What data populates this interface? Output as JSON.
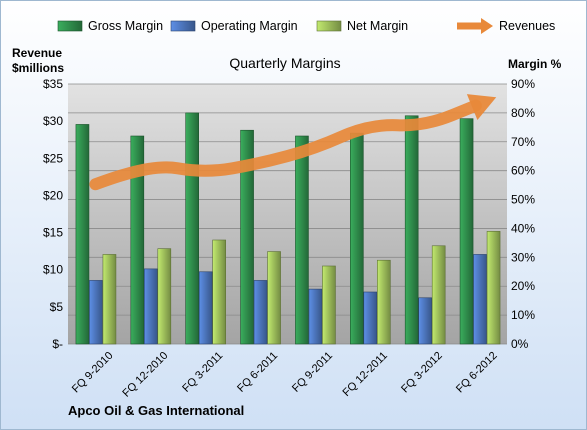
{
  "chart_data": {
    "type": "bar",
    "title": "Quarterly Margins",
    "company": "Apco Oil & Gas International",
    "categories": [
      "FQ 9-2010",
      "FQ 12-2010",
      "FQ 3-2011",
      "FQ 6-2011",
      "FQ 9-2011",
      "FQ 12-2011",
      "FQ 3-2012",
      "FQ 6-2012"
    ],
    "series": [
      {
        "name": "Gross Margin",
        "axis": "right",
        "color": "#2e8b4a",
        "values": [
          76,
          72,
          80,
          74,
          72,
          73,
          79,
          78
        ]
      },
      {
        "name": "Operating Margin",
        "axis": "right",
        "color": "#4a72b8",
        "values": [
          22,
          26,
          25,
          22,
          19,
          18,
          16,
          31
        ]
      },
      {
        "name": "Net Margin",
        "axis": "right",
        "color": "#9bbb59",
        "values": [
          31,
          33,
          36,
          32,
          27,
          29,
          34,
          39
        ]
      },
      {
        "name": "Revenues",
        "axis": "left",
        "type": "line",
        "color": "#e8893a",
        "values": [
          21.5,
          24.3,
          23.0,
          24.3,
          26.3,
          29.6,
          29.3,
          32.3
        ]
      }
    ],
    "left_axis": {
      "label_line1": "Revenue",
      "label_line2": "$millions",
      "range": [
        0,
        35
      ],
      "ticks": [
        "$-",
        "$5",
        "$10",
        "$15",
        "$20",
        "$25",
        "$30",
        "$35"
      ]
    },
    "right_axis": {
      "label": "Margin  %",
      "range": [
        0,
        90
      ],
      "ticks": [
        "0%",
        "10%",
        "20%",
        "30%",
        "40%",
        "50%",
        "60%",
        "70%",
        "80%",
        "90%"
      ]
    },
    "legend_position": "top",
    "grid": true,
    "colors": {
      "plot_top": "#e2e2e2",
      "plot_bottom": "#a4a4a4",
      "background_top": "#ffffff",
      "background_bottom": "#cfe0f5"
    }
  }
}
